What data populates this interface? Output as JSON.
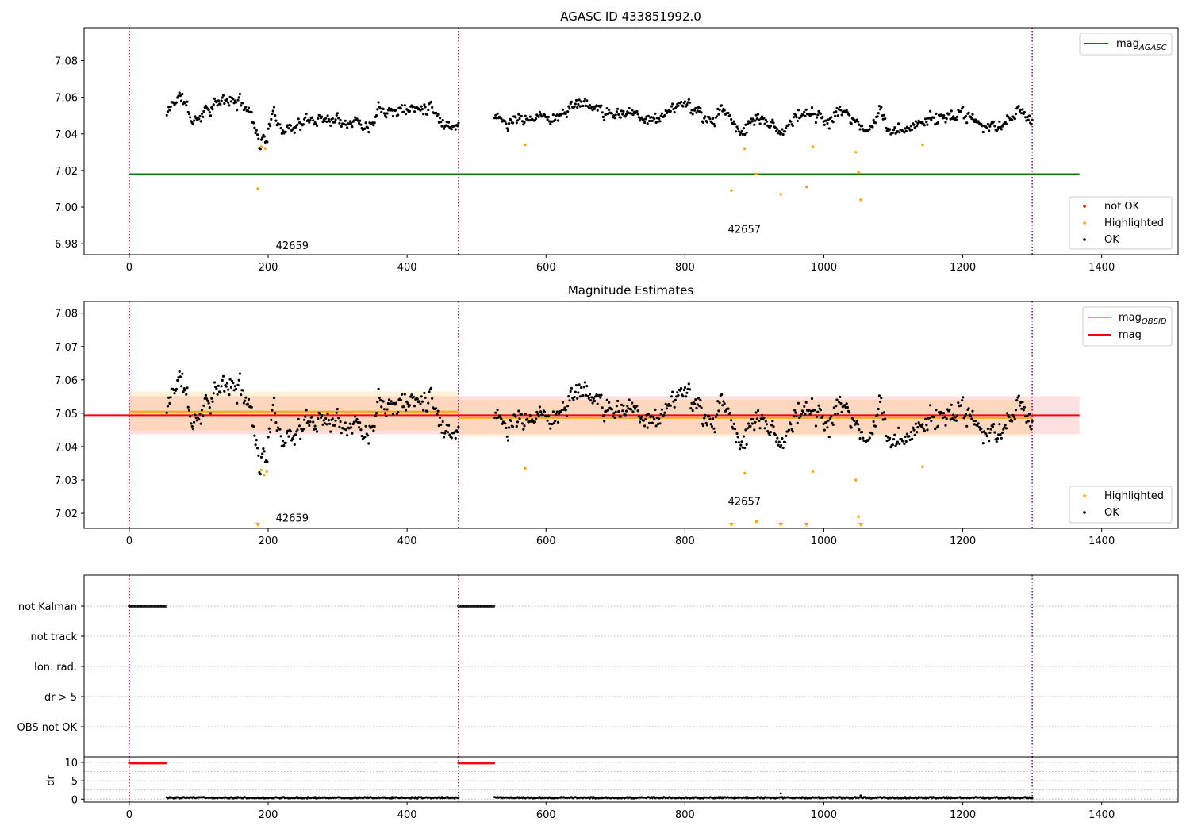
{
  "colors": {
    "ok": "#000000",
    "highlighted": "#ffa500",
    "not_ok": "#ff0000",
    "mag_agasc": "#008000",
    "mag_obsid": "#ffa500",
    "mag": "#ff0000",
    "obs_boundary": "#800080",
    "grid": "#b0b0b0"
  },
  "chart_data": [
    {
      "id": "panel-agasc",
      "type": "scatter",
      "title": "AGASC ID 433851992.0",
      "xlim": [
        -65,
        1510
      ],
      "ylim": [
        6.974,
        7.098
      ],
      "x_ticks": [
        0,
        200,
        400,
        600,
        800,
        1000,
        1200,
        1400
      ],
      "y_ticks": [
        6.98,
        7.0,
        7.02,
        7.04,
        7.06,
        7.08
      ],
      "y_tick_labels": [
        "6.98",
        "7.00",
        "7.02",
        "7.04",
        "7.06",
        "7.08"
      ],
      "obs_boundaries": [
        0,
        474,
        1300
      ],
      "obsid_labels": [
        {
          "text": "42659",
          "x": 211,
          "y": 6.977
        },
        {
          "text": "42657",
          "x": 862,
          "y": 6.986
        }
      ],
      "lines": [
        {
          "name": "mag_AGASC",
          "y": 7.018,
          "x_range": [
            0,
            1368
          ],
          "color": "#008000"
        }
      ],
      "legends": [
        {
          "position": "upper-right",
          "entries": [
            {
              "label": "mag",
              "sub": "AGASC",
              "kind": "line",
              "color": "#008000"
            }
          ]
        },
        {
          "position": "lower-right",
          "entries": [
            {
              "label": "not OK",
              "kind": "dot",
              "color": "#ff0000"
            },
            {
              "label": "Highlighted",
              "kind": "dot",
              "color": "#ffa500"
            },
            {
              "label": "OK",
              "kind": "dot",
              "color": "#000000"
            }
          ]
        }
      ],
      "ok_segments": [
        {
          "x_range": [
            54,
            474
          ],
          "n": 300,
          "seed": 11,
          "trend": [
            [
              54,
              7.05
            ],
            [
              62,
              7.057
            ],
            [
              75,
              7.061
            ],
            [
              92,
              7.046
            ],
            [
              110,
              7.054
            ],
            [
              140,
              7.058
            ],
            [
              165,
              7.057
            ],
            [
              178,
              7.049
            ],
            [
              188,
              7.035
            ],
            [
              198,
              7.038
            ],
            [
              205,
              7.05
            ],
            [
              225,
              7.043
            ],
            [
              250,
              7.046
            ],
            [
              280,
              7.049
            ],
            [
              320,
              7.048
            ],
            [
              345,
              7.044
            ],
            [
              360,
              7.056
            ],
            [
              380,
              7.053
            ],
            [
              420,
              7.054
            ],
            [
              435,
              7.057
            ],
            [
              450,
              7.046
            ],
            [
              474,
              7.045
            ]
          ],
          "amp": 0.0045,
          "noise": 0.0025
        },
        {
          "x_range": [
            526,
            1300
          ],
          "n": 560,
          "seed": 23,
          "trend": [
            [
              526,
              7.052
            ],
            [
              545,
              7.043
            ],
            [
              560,
              7.048
            ],
            [
              600,
              7.049
            ],
            [
              630,
              7.052
            ],
            [
              650,
              7.058
            ],
            [
              690,
              7.05
            ],
            [
              720,
              7.053
            ],
            [
              760,
              7.047
            ],
            [
              790,
              7.057
            ],
            [
              830,
              7.048
            ],
            [
              860,
              7.052
            ],
            [
              880,
              7.041
            ],
            [
              905,
              7.05
            ],
            [
              940,
              7.041
            ],
            [
              970,
              7.053
            ],
            [
              1010,
              7.046
            ],
            [
              1030,
              7.053
            ],
            [
              1060,
              7.042
            ],
            [
              1080,
              7.05
            ],
            [
              1100,
              7.039
            ],
            [
              1130,
              7.046
            ],
            [
              1160,
              7.049
            ],
            [
              1200,
              7.051
            ],
            [
              1230,
              7.042
            ],
            [
              1260,
              7.046
            ],
            [
              1280,
              7.054
            ],
            [
              1300,
              7.047
            ]
          ],
          "amp": 0.004,
          "noise": 0.0025
        }
      ],
      "highlighted": [
        {
          "x": 185,
          "y": 7.01
        },
        {
          "x": 190,
          "y": 7.033
        },
        {
          "x": 196,
          "y": 7.032
        },
        {
          "x": 570,
          "y": 7.034
        },
        {
          "x": 867,
          "y": 7.009
        },
        {
          "x": 886,
          "y": 7.032
        },
        {
          "x": 903,
          "y": 7.018
        },
        {
          "x": 938,
          "y": 7.007
        },
        {
          "x": 975,
          "y": 7.011
        },
        {
          "x": 984,
          "y": 7.033
        },
        {
          "x": 1046,
          "y": 7.03
        },
        {
          "x": 1050,
          "y": 7.019
        },
        {
          "x": 1053,
          "y": 7.004
        },
        {
          "x": 1142,
          "y": 7.034
        }
      ],
      "not_ok": []
    },
    {
      "id": "panel-magnitude",
      "type": "scatter",
      "title": "Magnitude Estimates",
      "xlim": [
        -65,
        1510
      ],
      "ylim": [
        7.0155,
        7.0835
      ],
      "x_ticks": [
        0,
        200,
        400,
        600,
        800,
        1000,
        1200,
        1400
      ],
      "y_ticks": [
        7.02,
        7.03,
        7.04,
        7.05,
        7.06,
        7.07,
        7.08
      ],
      "y_tick_labels": [
        "7.02",
        "7.03",
        "7.04",
        "7.05",
        "7.06",
        "7.07",
        "7.08"
      ],
      "obs_boundaries": [
        0,
        474,
        1300
      ],
      "obsid_labels": [
        {
          "text": "42659",
          "x": 211,
          "y": 7.0175
        },
        {
          "text": "42657",
          "x": 862,
          "y": 7.0225
        }
      ],
      "bands": [
        {
          "name": "mag",
          "y": [
            7.0437,
            7.0551
          ],
          "x_range": [
            -1,
            1368
          ],
          "color": "#ff0000",
          "opacity": 0.12
        },
        {
          "name": "mag_OBSID 42659",
          "y": [
            7.0448,
            7.0565
          ],
          "x_range": [
            0,
            474
          ],
          "color": "#ffa500",
          "opacity": 0.15
        },
        {
          "name": "mag_OBSID 42657",
          "y": [
            7.043,
            7.054
          ],
          "x_range": [
            474,
            1300
          ],
          "color": "#ffa500",
          "opacity": 0.15
        }
      ],
      "lines": [
        {
          "name": "mag_OBSID 42659",
          "y": 7.0505,
          "x_range": [
            0,
            474
          ],
          "color": "#ffa500"
        },
        {
          "name": "mag_OBSID 42657",
          "y": 7.0486,
          "x_range": [
            474,
            1300
          ],
          "color": "#ffa500"
        },
        {
          "name": "mag",
          "y": 7.0494,
          "x_range": [
            -65,
            1368
          ],
          "color": "#ff0000"
        }
      ],
      "legends": [
        {
          "position": "upper-right",
          "entries": [
            {
              "label": "mag",
              "sub": "OBSID",
              "kind": "line",
              "color": "#ffa500"
            },
            {
              "label": "mag",
              "kind": "line",
              "color": "#ff0000"
            }
          ]
        },
        {
          "position": "lower-right",
          "entries": [
            {
              "label": "Highlighted",
              "kind": "dot",
              "color": "#ffa500"
            },
            {
              "label": "OK",
              "kind": "dot",
              "color": "#000000"
            }
          ]
        }
      ],
      "ok_segments": [
        {
          "x_range": [
            54,
            474
          ],
          "n": 300,
          "seed": 11,
          "trend": [
            [
              54,
              7.05
            ],
            [
              62,
              7.057
            ],
            [
              75,
              7.061
            ],
            [
              92,
              7.046
            ],
            [
              110,
              7.054
            ],
            [
              140,
              7.058
            ],
            [
              165,
              7.057
            ],
            [
              178,
              7.049
            ],
            [
              188,
              7.035
            ],
            [
              198,
              7.038
            ],
            [
              205,
              7.05
            ],
            [
              225,
              7.043
            ],
            [
              250,
              7.046
            ],
            [
              280,
              7.049
            ],
            [
              320,
              7.048
            ],
            [
              345,
              7.044
            ],
            [
              360,
              7.056
            ],
            [
              380,
              7.053
            ],
            [
              420,
              7.054
            ],
            [
              435,
              7.057
            ],
            [
              450,
              7.046
            ],
            [
              474,
              7.045
            ]
          ],
          "amp": 0.0045,
          "noise": 0.0025
        },
        {
          "x_range": [
            526,
            1300
          ],
          "n": 560,
          "seed": 23,
          "trend": [
            [
              526,
              7.052
            ],
            [
              545,
              7.043
            ],
            [
              560,
              7.048
            ],
            [
              600,
              7.049
            ],
            [
              630,
              7.052
            ],
            [
              650,
              7.058
            ],
            [
              690,
              7.05
            ],
            [
              720,
              7.053
            ],
            [
              760,
              7.047
            ],
            [
              790,
              7.057
            ],
            [
              830,
              7.048
            ],
            [
              860,
              7.052
            ],
            [
              880,
              7.041
            ],
            [
              905,
              7.05
            ],
            [
              940,
              7.041
            ],
            [
              970,
              7.053
            ],
            [
              1010,
              7.046
            ],
            [
              1030,
              7.053
            ],
            [
              1060,
              7.042
            ],
            [
              1080,
              7.05
            ],
            [
              1100,
              7.039
            ],
            [
              1130,
              7.046
            ],
            [
              1160,
              7.049
            ],
            [
              1200,
              7.051
            ],
            [
              1230,
              7.042
            ],
            [
              1260,
              7.046
            ],
            [
              1280,
              7.054
            ],
            [
              1300,
              7.047
            ]
          ],
          "amp": 0.004,
          "noise": 0.0025
        }
      ],
      "highlighted": [
        {
          "x": 190,
          "y": 7.033
        },
        {
          "x": 194,
          "y": 7.0315
        },
        {
          "x": 198,
          "y": 7.0325
        },
        {
          "x": 570,
          "y": 7.0335
        },
        {
          "x": 886,
          "y": 7.032
        },
        {
          "x": 903,
          "y": 7.0175
        },
        {
          "x": 984,
          "y": 7.0325
        },
        {
          "x": 1046,
          "y": 7.03
        },
        {
          "x": 1050,
          "y": 7.019
        },
        {
          "x": 1142,
          "y": 7.034
        }
      ],
      "highlighted_below_range": [
        185,
        867,
        938,
        975,
        1053
      ]
    },
    {
      "id": "panel-flags",
      "type": "scatter",
      "xlim": [
        -65,
        1510
      ],
      "categories": [
        "not Kalman",
        "not track",
        "Ion. rad.",
        "dr > 5",
        "OBS not OK"
      ],
      "obs_boundaries": [
        0,
        474,
        1300
      ],
      "flag_runs": [
        {
          "category": "not Kalman",
          "x_range": [
            0,
            53
          ]
        },
        {
          "category": "not Kalman",
          "x_range": [
            474,
            526
          ]
        }
      ]
    },
    {
      "id": "panel-dr",
      "type": "scatter",
      "ylabel": "dr",
      "xlim": [
        -65,
        1510
      ],
      "ylim": [
        -0.8,
        11.5
      ],
      "x_ticks": [
        0,
        200,
        400,
        600,
        800,
        1000,
        1200,
        1400
      ],
      "y_ticks": [
        0,
        5,
        10
      ],
      "y_tick_labels": [
        "0",
        "5",
        "10"
      ],
      "obs_boundaries": [
        0,
        474,
        1300
      ],
      "not_ok_runs": [
        {
          "x_range": [
            0,
            53
          ],
          "y": 9.8
        },
        {
          "x_range": [
            474,
            526
          ],
          "y": 9.8
        }
      ],
      "ok_segments": [
        {
          "x_range": [
            54,
            474
          ],
          "n": 300,
          "seed": 31,
          "base": 0.4,
          "amp": 0.35
        },
        {
          "x_range": [
            526,
            1300
          ],
          "n": 560,
          "seed": 37,
          "base": 0.4,
          "amp": 0.35
        }
      ],
      "spikes": [
        {
          "x": 938,
          "y": 1.6
        },
        {
          "x": 1053,
          "y": 1.0
        }
      ]
    }
  ]
}
